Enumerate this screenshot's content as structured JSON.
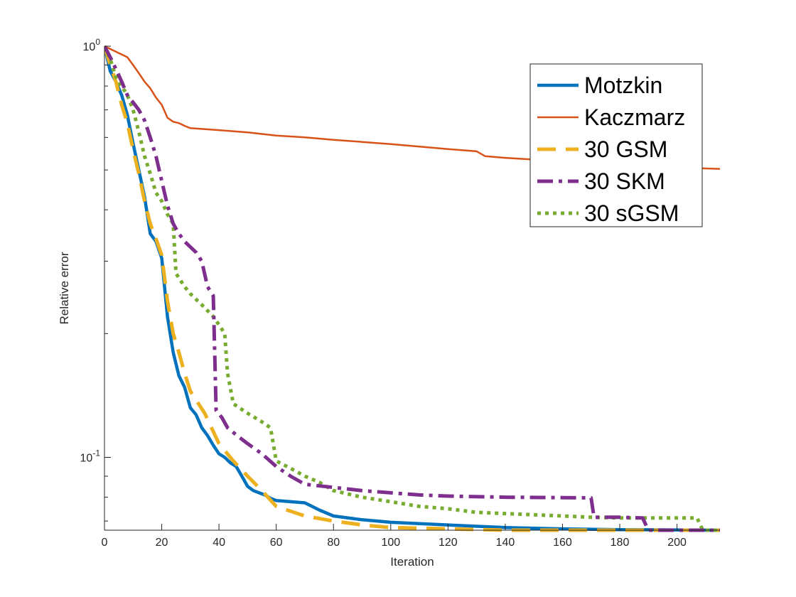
{
  "chart_data": {
    "type": "line",
    "xlabel": "Iteration",
    "ylabel": "Relative error",
    "xlim": [
      0,
      215
    ],
    "ylim": [
      0.0665,
      1.0
    ],
    "yscale": "log",
    "grid": false,
    "legend_position": "top-right",
    "xticks": [
      {
        "value": 0,
        "label": "0"
      },
      {
        "value": 20,
        "label": "20"
      },
      {
        "value": 40,
        "label": "40"
      },
      {
        "value": 60,
        "label": "60"
      },
      {
        "value": 80,
        "label": "80"
      },
      {
        "value": 100,
        "label": "100"
      },
      {
        "value": 120,
        "label": "120"
      },
      {
        "value": 140,
        "label": "140"
      },
      {
        "value": 160,
        "label": "160"
      },
      {
        "value": 180,
        "label": "180"
      },
      {
        "value": 200,
        "label": "200"
      }
    ],
    "yticks": [
      {
        "value": 1.0,
        "base": "10",
        "exp": "0"
      },
      {
        "value": 0.1,
        "base": "10",
        "exp": "-1"
      }
    ],
    "series": [
      {
        "name": "Motzkin",
        "color": "#0072BD",
        "style": "solid",
        "width": 4.5,
        "points": [
          [
            0,
            1.0
          ],
          [
            2,
            0.87
          ],
          [
            4,
            0.82
          ],
          [
            6,
            0.76
          ],
          [
            8,
            0.68
          ],
          [
            10,
            0.58
          ],
          [
            12,
            0.5
          ],
          [
            14,
            0.43
          ],
          [
            16,
            0.35
          ],
          [
            18,
            0.335
          ],
          [
            20,
            0.305
          ],
          [
            22,
            0.22
          ],
          [
            24,
            0.18
          ],
          [
            26,
            0.158
          ],
          [
            28,
            0.148
          ],
          [
            30,
            0.132
          ],
          [
            32,
            0.127
          ],
          [
            34,
            0.118
          ],
          [
            36,
            0.113
          ],
          [
            38,
            0.107
          ],
          [
            40,
            0.102
          ],
          [
            42,
            0.1
          ],
          [
            44,
            0.097
          ],
          [
            46,
            0.095
          ],
          [
            48,
            0.09
          ],
          [
            50,
            0.085
          ],
          [
            52,
            0.083
          ],
          [
            54,
            0.082
          ],
          [
            56,
            0.081
          ],
          [
            58,
            0.0795
          ],
          [
            60,
            0.0785
          ],
          [
            70,
            0.0775
          ],
          [
            75,
            0.0745
          ],
          [
            80,
            0.072
          ],
          [
            90,
            0.0705
          ],
          [
            100,
            0.0695
          ],
          [
            120,
            0.0685
          ],
          [
            140,
            0.0675
          ],
          [
            160,
            0.067
          ],
          [
            180,
            0.0667
          ],
          [
            215,
            0.0665
          ]
        ]
      },
      {
        "name": "Kaczmarz",
        "color": "#D95319",
        "style": "solid",
        "width": 2.5,
        "points": [
          [
            0,
            1.0
          ],
          [
            4,
            0.97
          ],
          [
            6,
            0.955
          ],
          [
            8,
            0.94
          ],
          [
            10,
            0.9
          ],
          [
            12,
            0.86
          ],
          [
            14,
            0.82
          ],
          [
            16,
            0.79
          ],
          [
            18,
            0.75
          ],
          [
            20,
            0.72
          ],
          [
            22,
            0.67
          ],
          [
            24,
            0.655
          ],
          [
            26,
            0.65
          ],
          [
            28,
            0.64
          ],
          [
            30,
            0.632
          ],
          [
            40,
            0.625
          ],
          [
            50,
            0.617
          ],
          [
            60,
            0.606
          ],
          [
            70,
            0.6
          ],
          [
            80,
            0.592
          ],
          [
            90,
            0.585
          ],
          [
            100,
            0.578
          ],
          [
            110,
            0.57
          ],
          [
            120,
            0.562
          ],
          [
            130,
            0.555
          ],
          [
            133,
            0.54
          ],
          [
            140,
            0.535
          ],
          [
            150,
            0.53
          ],
          [
            160,
            0.522
          ],
          [
            170,
            0.518
          ],
          [
            180,
            0.515
          ],
          [
            190,
            0.51
          ],
          [
            200,
            0.507
          ],
          [
            215,
            0.503
          ]
        ]
      },
      {
        "name": "30 GSM",
        "color": "#EDB120",
        "style": "dashed",
        "width": 5,
        "points": [
          [
            0,
            1.0
          ],
          [
            2,
            0.9
          ],
          [
            4,
            0.82
          ],
          [
            6,
            0.72
          ],
          [
            8,
            0.65
          ],
          [
            10,
            0.56
          ],
          [
            12,
            0.49
          ],
          [
            14,
            0.42
          ],
          [
            16,
            0.37
          ],
          [
            18,
            0.34
          ],
          [
            20,
            0.31
          ],
          [
            22,
            0.24
          ],
          [
            24,
            0.2
          ],
          [
            26,
            0.18
          ],
          [
            28,
            0.16
          ],
          [
            30,
            0.145
          ],
          [
            35,
            0.128
          ],
          [
            40,
            0.108
          ],
          [
            45,
            0.098
          ],
          [
            50,
            0.09
          ],
          [
            55,
            0.083
          ],
          [
            60,
            0.076
          ],
          [
            70,
            0.072
          ],
          [
            80,
            0.07
          ],
          [
            90,
            0.0685
          ],
          [
            100,
            0.0675
          ],
          [
            120,
            0.067
          ],
          [
            140,
            0.0665
          ],
          [
            215,
            0.0665
          ]
        ]
      },
      {
        "name": "30 SKM",
        "color": "#7E2F8E",
        "style": "dashdot",
        "width": 5,
        "points": [
          [
            0,
            1.0
          ],
          [
            2,
            0.94
          ],
          [
            4,
            0.88
          ],
          [
            6,
            0.82
          ],
          [
            8,
            0.76
          ],
          [
            10,
            0.73
          ],
          [
            12,
            0.7
          ],
          [
            14,
            0.66
          ],
          [
            16,
            0.6
          ],
          [
            18,
            0.54
          ],
          [
            20,
            0.47
          ],
          [
            22,
            0.41
          ],
          [
            24,
            0.37
          ],
          [
            26,
            0.35
          ],
          [
            28,
            0.335
          ],
          [
            30,
            0.325
          ],
          [
            32,
            0.315
          ],
          [
            34,
            0.3
          ],
          [
            36,
            0.26
          ],
          [
            38,
            0.247
          ],
          [
            39,
            0.13
          ],
          [
            41,
            0.125
          ],
          [
            43,
            0.118
          ],
          [
            47,
            0.112
          ],
          [
            50,
            0.108
          ],
          [
            55,
            0.102
          ],
          [
            60,
            0.095
          ],
          [
            65,
            0.09
          ],
          [
            70,
            0.086
          ],
          [
            80,
            0.0845
          ],
          [
            90,
            0.083
          ],
          [
            100,
            0.082
          ],
          [
            110,
            0.081
          ],
          [
            120,
            0.0805
          ],
          [
            140,
            0.08
          ],
          [
            160,
            0.0798
          ],
          [
            170,
            0.0797
          ],
          [
            171,
            0.0715
          ],
          [
            180,
            0.0715
          ],
          [
            188,
            0.0712
          ],
          [
            190,
            0.0665
          ],
          [
            215,
            0.0665
          ]
        ]
      },
      {
        "name": "30 sGSM",
        "color": "#77AC30",
        "style": "dotted",
        "width": 5,
        "points": [
          [
            0,
            1.0
          ],
          [
            2,
            0.93
          ],
          [
            4,
            0.84
          ],
          [
            6,
            0.8
          ],
          [
            8,
            0.76
          ],
          [
            10,
            0.7
          ],
          [
            12,
            0.62
          ],
          [
            14,
            0.54
          ],
          [
            16,
            0.49
          ],
          [
            18,
            0.44
          ],
          [
            20,
            0.42
          ],
          [
            22,
            0.39
          ],
          [
            24,
            0.37
          ],
          [
            25,
            0.28
          ],
          [
            28,
            0.26
          ],
          [
            30,
            0.25
          ],
          [
            34,
            0.235
          ],
          [
            38,
            0.22
          ],
          [
            40,
            0.21
          ],
          [
            42,
            0.2
          ],
          [
            43,
            0.16
          ],
          [
            45,
            0.135
          ],
          [
            50,
            0.128
          ],
          [
            55,
            0.122
          ],
          [
            58,
            0.118
          ],
          [
            60,
            0.098
          ],
          [
            65,
            0.094
          ],
          [
            70,
            0.09
          ],
          [
            75,
            0.087
          ],
          [
            80,
            0.083
          ],
          [
            90,
            0.08
          ],
          [
            100,
            0.078
          ],
          [
            110,
            0.076
          ],
          [
            120,
            0.075
          ],
          [
            130,
            0.0735
          ],
          [
            140,
            0.073
          ],
          [
            150,
            0.0725
          ],
          [
            160,
            0.072
          ],
          [
            170,
            0.0715
          ],
          [
            180,
            0.0712
          ],
          [
            207,
            0.0712
          ],
          [
            209,
            0.0665
          ],
          [
            215,
            0.0665
          ]
        ]
      }
    ]
  }
}
